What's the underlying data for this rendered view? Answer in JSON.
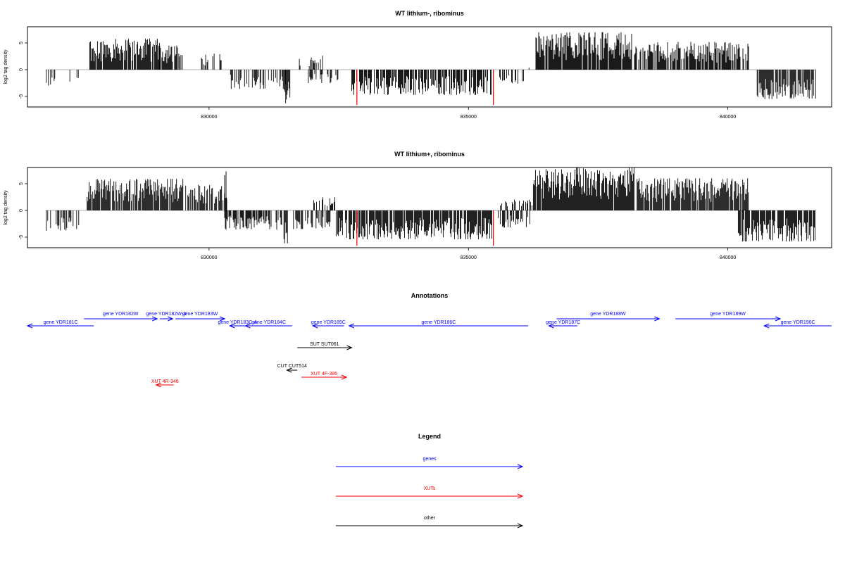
{
  "chart_data": [
    {
      "type": "bar",
      "title": "WT lithium-, ribominus",
      "ylabel": "log2 tag density",
      "xlim": [
        826500,
        842000
      ],
      "ylim": [
        -7,
        8
      ],
      "x_ticks": [
        830000,
        835000,
        840000
      ],
      "y_ticks": [
        -5,
        0,
        5
      ],
      "y_tick_labels": [
        "-5",
        "0",
        "5"
      ],
      "x_tick_labels": [
        "830000",
        "835000",
        "840000"
      ],
      "highlight_positions": [
        832850,
        835480
      ],
      "regions": [
        {
          "start": 826850,
          "end": 827100,
          "sign": -1,
          "max": 3.2,
          "density": 0.4
        },
        {
          "start": 827100,
          "end": 827500,
          "sign": -1,
          "max": 3.0,
          "density": 0.15
        },
        {
          "start": 827700,
          "end": 829050,
          "sign": 1,
          "max": 5.8,
          "density": 0.85
        },
        {
          "start": 829050,
          "end": 829500,
          "sign": 1,
          "max": 4.5,
          "density": 0.7
        },
        {
          "start": 829800,
          "end": 830250,
          "sign": 1,
          "max": 3.0,
          "density": 0.45
        },
        {
          "start": 830400,
          "end": 831500,
          "sign": -1,
          "max": 3.6,
          "density": 0.55
        },
        {
          "start": 831450,
          "end": 831560,
          "sign": -1,
          "max": 6.6,
          "density": 0.9
        },
        {
          "start": 831700,
          "end": 832200,
          "sign": 1,
          "max": 2.6,
          "density": 0.35
        },
        {
          "start": 831900,
          "end": 832500,
          "sign": -1,
          "max": 2.5,
          "density": 0.3
        },
        {
          "start": 832750,
          "end": 835500,
          "sign": -1,
          "max": 4.7,
          "density": 0.7
        },
        {
          "start": 835600,
          "end": 836150,
          "sign": -1,
          "max": 2.6,
          "density": 0.35
        },
        {
          "start": 836100,
          "end": 836300,
          "sign": 1,
          "max": 1.0,
          "density": 0.25
        },
        {
          "start": 836300,
          "end": 838150,
          "sign": 1,
          "max": 7.0,
          "density": 0.95
        },
        {
          "start": 838200,
          "end": 840400,
          "sign": 1,
          "max": 5.2,
          "density": 0.8
        },
        {
          "start": 840550,
          "end": 841700,
          "sign": -1,
          "max": 5.5,
          "density": 0.85
        }
      ]
    },
    {
      "type": "bar",
      "title": "WT lithium+, ribominus",
      "ylabel": "log2 tag density",
      "xlim": [
        826500,
        842000
      ],
      "ylim": [
        -7,
        8
      ],
      "x_ticks": [
        830000,
        835000,
        840000
      ],
      "y_ticks": [
        -5,
        0,
        5
      ],
      "y_tick_labels": [
        "-5",
        "0",
        "5"
      ],
      "x_tick_labels": [
        "830000",
        "835000",
        "840000"
      ],
      "highlight_positions": [
        832850,
        835480
      ],
      "regions": [
        {
          "start": 826850,
          "end": 827500,
          "sign": -1,
          "max": 3.8,
          "density": 0.5
        },
        {
          "start": 827650,
          "end": 829500,
          "sign": 1,
          "max": 5.9,
          "density": 0.9
        },
        {
          "start": 829550,
          "end": 830350,
          "sign": 1,
          "max": 4.8,
          "density": 0.7
        },
        {
          "start": 830300,
          "end": 830350,
          "sign": 1,
          "max": 7.3,
          "density": 1.0
        },
        {
          "start": 830300,
          "end": 831400,
          "sign": -1,
          "max": 3.6,
          "density": 0.6
        },
        {
          "start": 831430,
          "end": 831520,
          "sign": -1,
          "max": 6.6,
          "density": 0.9
        },
        {
          "start": 831600,
          "end": 832400,
          "sign": -1,
          "max": 3.5,
          "density": 0.55
        },
        {
          "start": 831950,
          "end": 832450,
          "sign": 1,
          "max": 2.5,
          "density": 0.45
        },
        {
          "start": 832450,
          "end": 835450,
          "sign": -1,
          "max": 5.4,
          "density": 0.85
        },
        {
          "start": 835450,
          "end": 836200,
          "sign": -1,
          "max": 3.2,
          "density": 0.4
        },
        {
          "start": 835600,
          "end": 836250,
          "sign": 1,
          "max": 2.0,
          "density": 0.35
        },
        {
          "start": 836250,
          "end": 838200,
          "sign": 1,
          "max": 8.0,
          "density": 0.98
        },
        {
          "start": 838250,
          "end": 840400,
          "sign": 1,
          "max": 6.0,
          "density": 0.85
        },
        {
          "start": 840200,
          "end": 841700,
          "sign": -1,
          "max": 5.8,
          "density": 0.85
        }
      ]
    }
  ],
  "annotations": {
    "title": "Annotations",
    "xlim": [
      826500,
      842000
    ],
    "features": [
      {
        "label": "gene YDR181C",
        "start": 826500,
        "end": 827780,
        "strand": "-",
        "row": 1,
        "color": "#0000ff"
      },
      {
        "label": "gene YDR182W",
        "start": 827590,
        "end": 829000,
        "strand": "+",
        "row": 0,
        "color": "#0000ff"
      },
      {
        "label": "gene YDR182W-A",
        "start": 829050,
        "end": 829300,
        "strand": "+",
        "row": 0,
        "color": "#0000ff"
      },
      {
        "label": "gene YDR183W",
        "start": 829350,
        "end": 830300,
        "strand": "+",
        "row": 0,
        "color": "#0000ff"
      },
      {
        "label": "gene YDR183C-A",
        "start": 830400,
        "end": 830700,
        "strand": "-",
        "row": 1,
        "color": "#0000ff"
      },
      {
        "label": "gene YDR184C",
        "start": 830700,
        "end": 831600,
        "strand": "-",
        "row": 1,
        "color": "#0000ff"
      },
      {
        "label": "gene YDR185C",
        "start": 832000,
        "end": 832600,
        "strand": "-",
        "row": 1,
        "color": "#0000ff"
      },
      {
        "label": "gene YDR186C",
        "start": 832700,
        "end": 836150,
        "strand": "-",
        "row": 1,
        "color": "#0000ff"
      },
      {
        "label": "gene YDR187C",
        "start": 836550,
        "end": 837100,
        "strand": "-",
        "row": 1,
        "color": "#0000ff"
      },
      {
        "label": "gene YDR188W",
        "start": 836700,
        "end": 838680,
        "strand": "+",
        "row": 0,
        "color": "#0000ff"
      },
      {
        "label": "gene YDR189W",
        "start": 838990,
        "end": 841010,
        "strand": "+",
        "row": 0,
        "color": "#0000ff"
      },
      {
        "label": "gene YDR190C",
        "start": 840700,
        "end": 842000,
        "strand": "-",
        "row": 1,
        "color": "#0000ff"
      },
      {
        "label": "SUT SUT061",
        "start": 831700,
        "end": 832750,
        "strand": "+",
        "row": 2,
        "color": "#000000"
      },
      {
        "label": "CUT CUT514",
        "start": 831500,
        "end": 831700,
        "strand": "-",
        "row": 3,
        "color": "#000000"
      },
      {
        "label": "XUT 4F-395",
        "start": 831780,
        "end": 832650,
        "strand": "+",
        "row": 4,
        "color": "#ff0000"
      },
      {
        "label": "XUT 4R-346",
        "start": 828980,
        "end": 829320,
        "strand": "-",
        "row": 5,
        "color": "#ff0000"
      }
    ]
  },
  "legend": {
    "title": "Legend",
    "items": [
      {
        "label": "genes",
        "color": "#0000ff"
      },
      {
        "label": "XUTs",
        "color": "#ff0000"
      },
      {
        "label": "other",
        "color": "#000000"
      }
    ]
  }
}
